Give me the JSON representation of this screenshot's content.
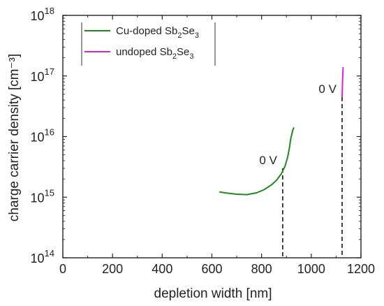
{
  "chart_data": {
    "type": "line",
    "title": "",
    "xlabel": "depletion width [nm]",
    "ylabel": "charge carrier density [cm⁻³]",
    "xlim": [
      0,
      1200
    ],
    "ylim": [
      100000000000000.0,
      1e+18
    ],
    "yscale": "log",
    "x_ticks": [
      0,
      200,
      400,
      600,
      800,
      1000,
      1200
    ],
    "y_ticks": [
      {
        "exponent": 14,
        "label": "10"
      },
      {
        "exponent": 15,
        "label": "10"
      },
      {
        "exponent": 16,
        "label": "10"
      },
      {
        "exponent": 17,
        "label": "10"
      },
      {
        "exponent": 18,
        "label": "10"
      }
    ],
    "legend_position": "top-left",
    "series": [
      {
        "name": "Cu-doped Sb2Se3",
        "color": "#1e8a1e",
        "points": [
          {
            "x": 630,
            "y": 1220000000000000.0
          },
          {
            "x": 660,
            "y": 1170000000000000.0
          },
          {
            "x": 700,
            "y": 1120000000000000.0
          },
          {
            "x": 740,
            "y": 1100000000000000.0
          },
          {
            "x": 780,
            "y": 1180000000000000.0
          },
          {
            "x": 810,
            "y": 1330000000000000.0
          },
          {
            "x": 840,
            "y": 1600000000000000.0
          },
          {
            "x": 860,
            "y": 1900000000000000.0
          },
          {
            "x": 880,
            "y": 2450000000000000.0
          },
          {
            "x": 895,
            "y": 3300000000000000.0
          },
          {
            "x": 905,
            "y": 4600000000000000.0
          },
          {
            "x": 912,
            "y": 6500000000000000.0
          },
          {
            "x": 918,
            "y": 9500000000000000.0
          },
          {
            "x": 925,
            "y": 1.25e+16
          },
          {
            "x": 930,
            "y": 1.42e+16
          }
        ]
      },
      {
        "name": "undoped Sb2Se3",
        "color": "#e020e0",
        "points": [
          {
            "x": 1124,
            "y": 4.5e+16
          },
          {
            "x": 1125,
            "y": 6e+16
          },
          {
            "x": 1126,
            "y": 8.5e+16
          },
          {
            "x": 1127,
            "y": 1.1e+17
          },
          {
            "x": 1128,
            "y": 1.4e+17
          }
        ]
      }
    ],
    "annotations": [
      {
        "text": "0 V",
        "x": 885,
        "y": 3000000000000000.0
      },
      {
        "text": "0 V",
        "x": 1124,
        "y": 4.5e+16
      }
    ],
    "legend": [
      {
        "base": "Cu-doped Sb",
        "sub1": "2",
        "mid": "Se",
        "sub2": "3",
        "color": "#1e8a1e"
      },
      {
        "base": "undoped Sb",
        "sub1": "2",
        "mid": "Se",
        "sub2": "3",
        "color": "#e020e0"
      }
    ]
  }
}
